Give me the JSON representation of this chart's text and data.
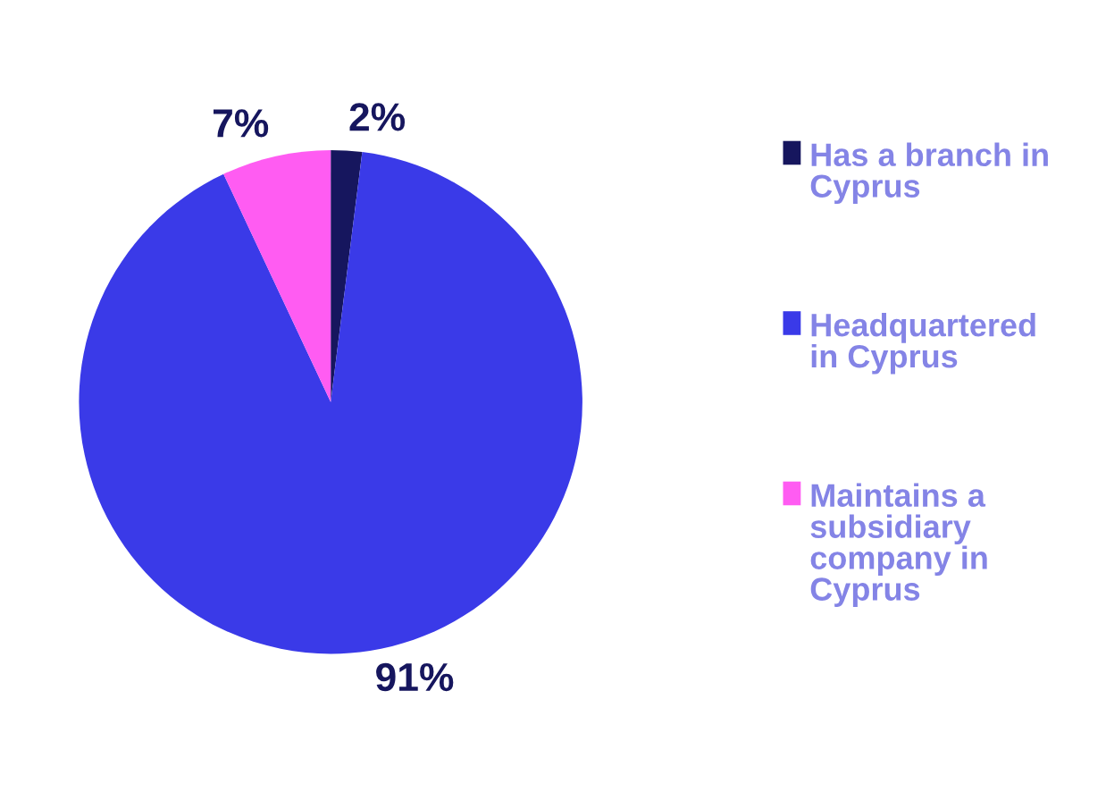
{
  "chart_data": {
    "type": "pie",
    "categories": [
      "Has a branch in\nCyprus",
      "Headquartered\nin Cyprus",
      "Maintains a\nsubsidiary\ncompany in\nCyprus"
    ],
    "values": [
      2,
      91,
      7
    ],
    "value_labels": [
      "2%",
      "91%",
      "7%"
    ],
    "colors": [
      "#16165e",
      "#3a3ae8",
      "#ff5cf2"
    ],
    "legend": "right"
  }
}
